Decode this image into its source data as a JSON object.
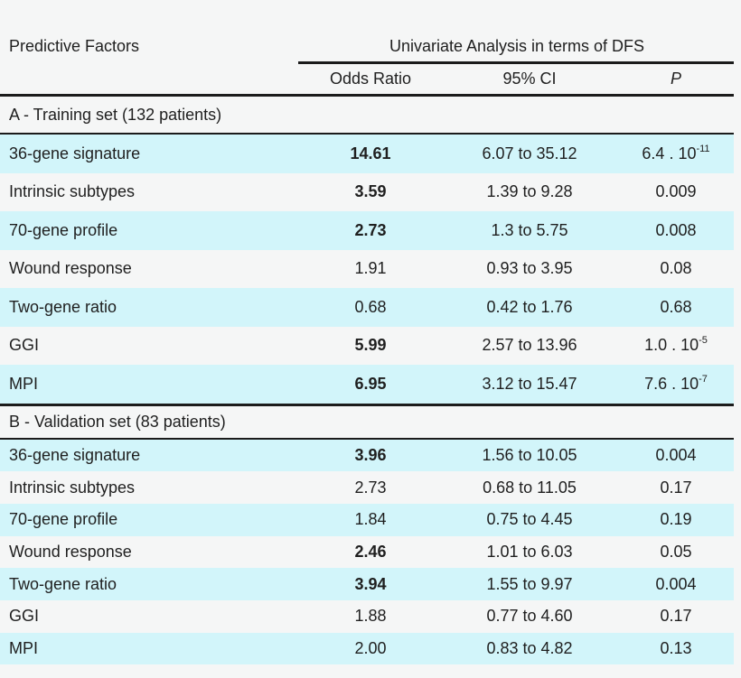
{
  "colors": {
    "background": "#f5f6f6",
    "row_highlight": "#d2f5fa",
    "row_plain": "#f5f6f6",
    "rule": "#1b1b1b",
    "text": "#1f1f1f"
  },
  "chart_data": {
    "type": "table",
    "title_left": "Predictive Factors",
    "spanner": "Univariate Analysis in terms of DFS",
    "columns": [
      "Odds Ratio",
      "95% CI",
      "P"
    ],
    "layout": {
      "striped": true,
      "stripe_color": "#d2f5fa",
      "spanner_rule_partial": true
    },
    "sections": [
      {
        "label": "A - Training set (132 patients)",
        "rows": [
          {
            "factor": "36-gene signature",
            "odds_ratio": "14.61",
            "or_bold": true,
            "ci_95": "6.07 to 35.12",
            "p_base": "6.4 . 10",
            "p_exp": "-11"
          },
          {
            "factor": "Intrinsic subtypes",
            "odds_ratio": "3.59",
            "or_bold": true,
            "ci_95": "1.39 to 9.28",
            "p_base": "0.009"
          },
          {
            "factor": "70-gene profile",
            "odds_ratio": "2.73",
            "or_bold": true,
            "ci_95": "1.3 to 5.75",
            "p_base": "0.008"
          },
          {
            "factor": "Wound response",
            "odds_ratio": "1.91",
            "or_bold": false,
            "ci_95": "0.93 to 3.95",
            "p_base": "0.08"
          },
          {
            "factor": "Two-gene ratio",
            "odds_ratio": "0.68",
            "or_bold": false,
            "ci_95": "0.42 to 1.76",
            "p_base": "0.68"
          },
          {
            "factor": "GGI",
            "odds_ratio": "5.99",
            "or_bold": true,
            "ci_95": "2.57 to 13.96",
            "p_base": "1.0 . 10",
            "p_exp": "-5"
          },
          {
            "factor": "MPI",
            "odds_ratio": "6.95",
            "or_bold": true,
            "ci_95": "3.12 to 15.47",
            "p_base": "7.6 . 10",
            "p_exp": "-7"
          }
        ]
      },
      {
        "label": "B - Validation set (83 patients)",
        "rows": [
          {
            "factor": "36-gene signature",
            "odds_ratio": "3.96",
            "or_bold": true,
            "ci_95": "1.56 to 10.05",
            "p_base": "0.004"
          },
          {
            "factor": "Intrinsic subtypes",
            "odds_ratio": "2.73",
            "or_bold": false,
            "ci_95": "0.68 to 11.05",
            "p_base": "0.17"
          },
          {
            "factor": "70-gene profile",
            "odds_ratio": "1.84",
            "or_bold": false,
            "ci_95": "0.75 to 4.45",
            "p_base": "0.19"
          },
          {
            "factor": "Wound response",
            "odds_ratio": "2.46",
            "or_bold": true,
            "ci_95": "1.01 to 6.03",
            "p_base": "0.05"
          },
          {
            "factor": "Two-gene ratio",
            "odds_ratio": "3.94",
            "or_bold": true,
            "ci_95": "1.55 to 9.97",
            "p_base": "0.004"
          },
          {
            "factor": "GGI",
            "odds_ratio": "1.88",
            "or_bold": false,
            "ci_95": "0.77 to 4.60",
            "p_base": "0.17"
          },
          {
            "factor": "MPI",
            "odds_ratio": "2.00",
            "or_bold": false,
            "ci_95": "0.83 to 4.82",
            "p_base": "0.13"
          }
        ]
      }
    ]
  }
}
